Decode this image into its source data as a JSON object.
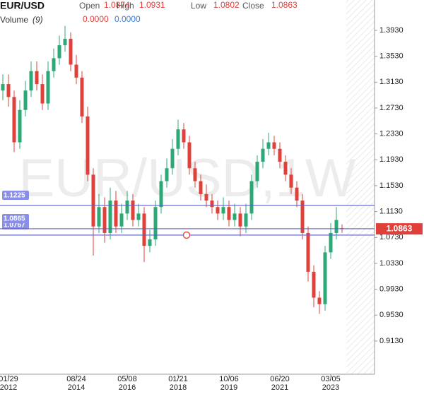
{
  "header": {
    "symbol": "EUR/USD",
    "open_label": "Open",
    "open": 1.0874,
    "high_label": "High",
    "high": 1.0931,
    "low_label": "Low",
    "low": 1.0802,
    "close_label": "Close",
    "close": 1.0863,
    "volume_label": "Volume",
    "volume_period": "(9)",
    "volume_values": [
      "0.0000",
      "0.0000"
    ]
  },
  "chart_data": {
    "type": "candlestick",
    "watermark": "EUR/USD,1W",
    "up_color": "#2aa876",
    "down_color": "#e0403a",
    "ylim": [
      0.8617,
      1.4399
    ],
    "yticks": [
      {
        "value": 1.393,
        "label": "1.3930"
      },
      {
        "value": 1.353,
        "label": "1.3530"
      },
      {
        "value": 1.313,
        "label": "1.3130"
      },
      {
        "value": 1.273,
        "label": "1.2730"
      },
      {
        "value": 1.233,
        "label": "1.2330"
      },
      {
        "value": 1.193,
        "label": "1.1930"
      },
      {
        "value": 1.153,
        "label": "1.1530"
      },
      {
        "value": 1.113,
        "label": "1.1130"
      },
      {
        "value": 1.073,
        "label": "1.0730"
      },
      {
        "value": 1.033,
        "label": "1.0330"
      },
      {
        "value": 0.993,
        "label": "0.9930"
      },
      {
        "value": 0.953,
        "label": "0.9530"
      },
      {
        "value": 0.913,
        "label": "0.9130"
      }
    ],
    "xticks": [
      {
        "value": 1,
        "label": "01/29\n2012"
      },
      {
        "value": 13,
        "label": "08/24\n2014"
      },
      {
        "value": 22,
        "label": "05/08\n2016"
      },
      {
        "value": 31,
        "label": "01/21\n2018"
      },
      {
        "value": 40,
        "label": "10/06\n2019"
      },
      {
        "value": 49,
        "label": "06/20\n2021"
      },
      {
        "value": 58,
        "label": "03/05\n2023"
      }
    ],
    "hlines": [
      1.1225,
      1.0865,
      1.0767
    ],
    "hline_color": "#5b5fc7",
    "open": [
      1.3,
      1.31,
      1.29,
      1.22,
      1.27,
      1.3,
      1.33,
      1.31,
      1.28,
      1.33,
      1.35,
      1.37,
      1.38,
      1.34,
      1.32,
      1.26,
      1.17,
      1.09,
      1.12,
      1.08,
      1.13,
      1.09,
      1.11,
      1.13,
      1.1,
      1.11,
      1.06,
      1.07,
      1.12,
      1.16,
      1.18,
      1.21,
      1.24,
      1.22,
      1.18,
      1.16,
      1.14,
      1.13,
      1.12,
      1.11,
      1.12,
      1.1,
      1.11,
      1.09,
      1.11,
      1.16,
      1.19,
      1.21,
      1.22,
      1.21,
      1.19,
      1.17,
      1.15,
      1.13,
      1.08,
      1.02,
      0.98,
      0.97,
      1.05,
      1.08,
      1.0874
    ],
    "high": [
      1.325,
      1.325,
      1.3,
      1.285,
      1.315,
      1.345,
      1.345,
      1.325,
      1.345,
      1.365,
      1.385,
      1.4,
      1.39,
      1.355,
      1.33,
      1.275,
      1.18,
      1.14,
      1.135,
      1.15,
      1.145,
      1.125,
      1.145,
      1.14,
      1.125,
      1.12,
      1.085,
      1.13,
      1.17,
      1.195,
      1.225,
      1.255,
      1.25,
      1.23,
      1.19,
      1.17,
      1.155,
      1.14,
      1.13,
      1.135,
      1.13,
      1.125,
      1.12,
      1.125,
      1.17,
      1.2,
      1.225,
      1.235,
      1.23,
      1.22,
      1.2,
      1.18,
      1.16,
      1.14,
      1.09,
      1.03,
      0.99,
      1.06,
      1.095,
      1.12,
      1.0931
    ],
    "low": [
      1.285,
      1.275,
      1.205,
      1.21,
      1.26,
      1.29,
      1.3,
      1.27,
      1.27,
      1.32,
      1.34,
      1.36,
      1.33,
      1.31,
      1.25,
      1.16,
      1.045,
      1.08,
      1.065,
      1.07,
      1.08,
      1.08,
      1.1,
      1.09,
      1.09,
      1.035,
      1.05,
      1.06,
      1.11,
      1.15,
      1.17,
      1.2,
      1.21,
      1.17,
      1.15,
      1.13,
      1.12,
      1.11,
      1.1,
      1.1,
      1.09,
      1.09,
      1.075,
      1.08,
      1.1,
      1.15,
      1.18,
      1.2,
      1.2,
      1.18,
      1.16,
      1.14,
      1.12,
      1.07,
      1.005,
      0.965,
      0.955,
      0.96,
      1.04,
      1.07,
      1.0802
    ],
    "close": [
      1.31,
      1.29,
      1.22,
      1.27,
      1.3,
      1.33,
      1.31,
      1.28,
      1.33,
      1.35,
      1.37,
      1.38,
      1.34,
      1.32,
      1.26,
      1.17,
      1.09,
      1.12,
      1.08,
      1.13,
      1.09,
      1.11,
      1.13,
      1.1,
      1.11,
      1.06,
      1.07,
      1.12,
      1.16,
      1.18,
      1.21,
      1.24,
      1.22,
      1.18,
      1.16,
      1.14,
      1.13,
      1.12,
      1.11,
      1.12,
      1.1,
      1.11,
      1.09,
      1.11,
      1.16,
      1.19,
      1.21,
      1.22,
      1.21,
      1.19,
      1.17,
      1.15,
      1.13,
      1.08,
      1.02,
      0.98,
      0.97,
      1.05,
      1.08,
      1.1,
      1.0863
    ]
  }
}
